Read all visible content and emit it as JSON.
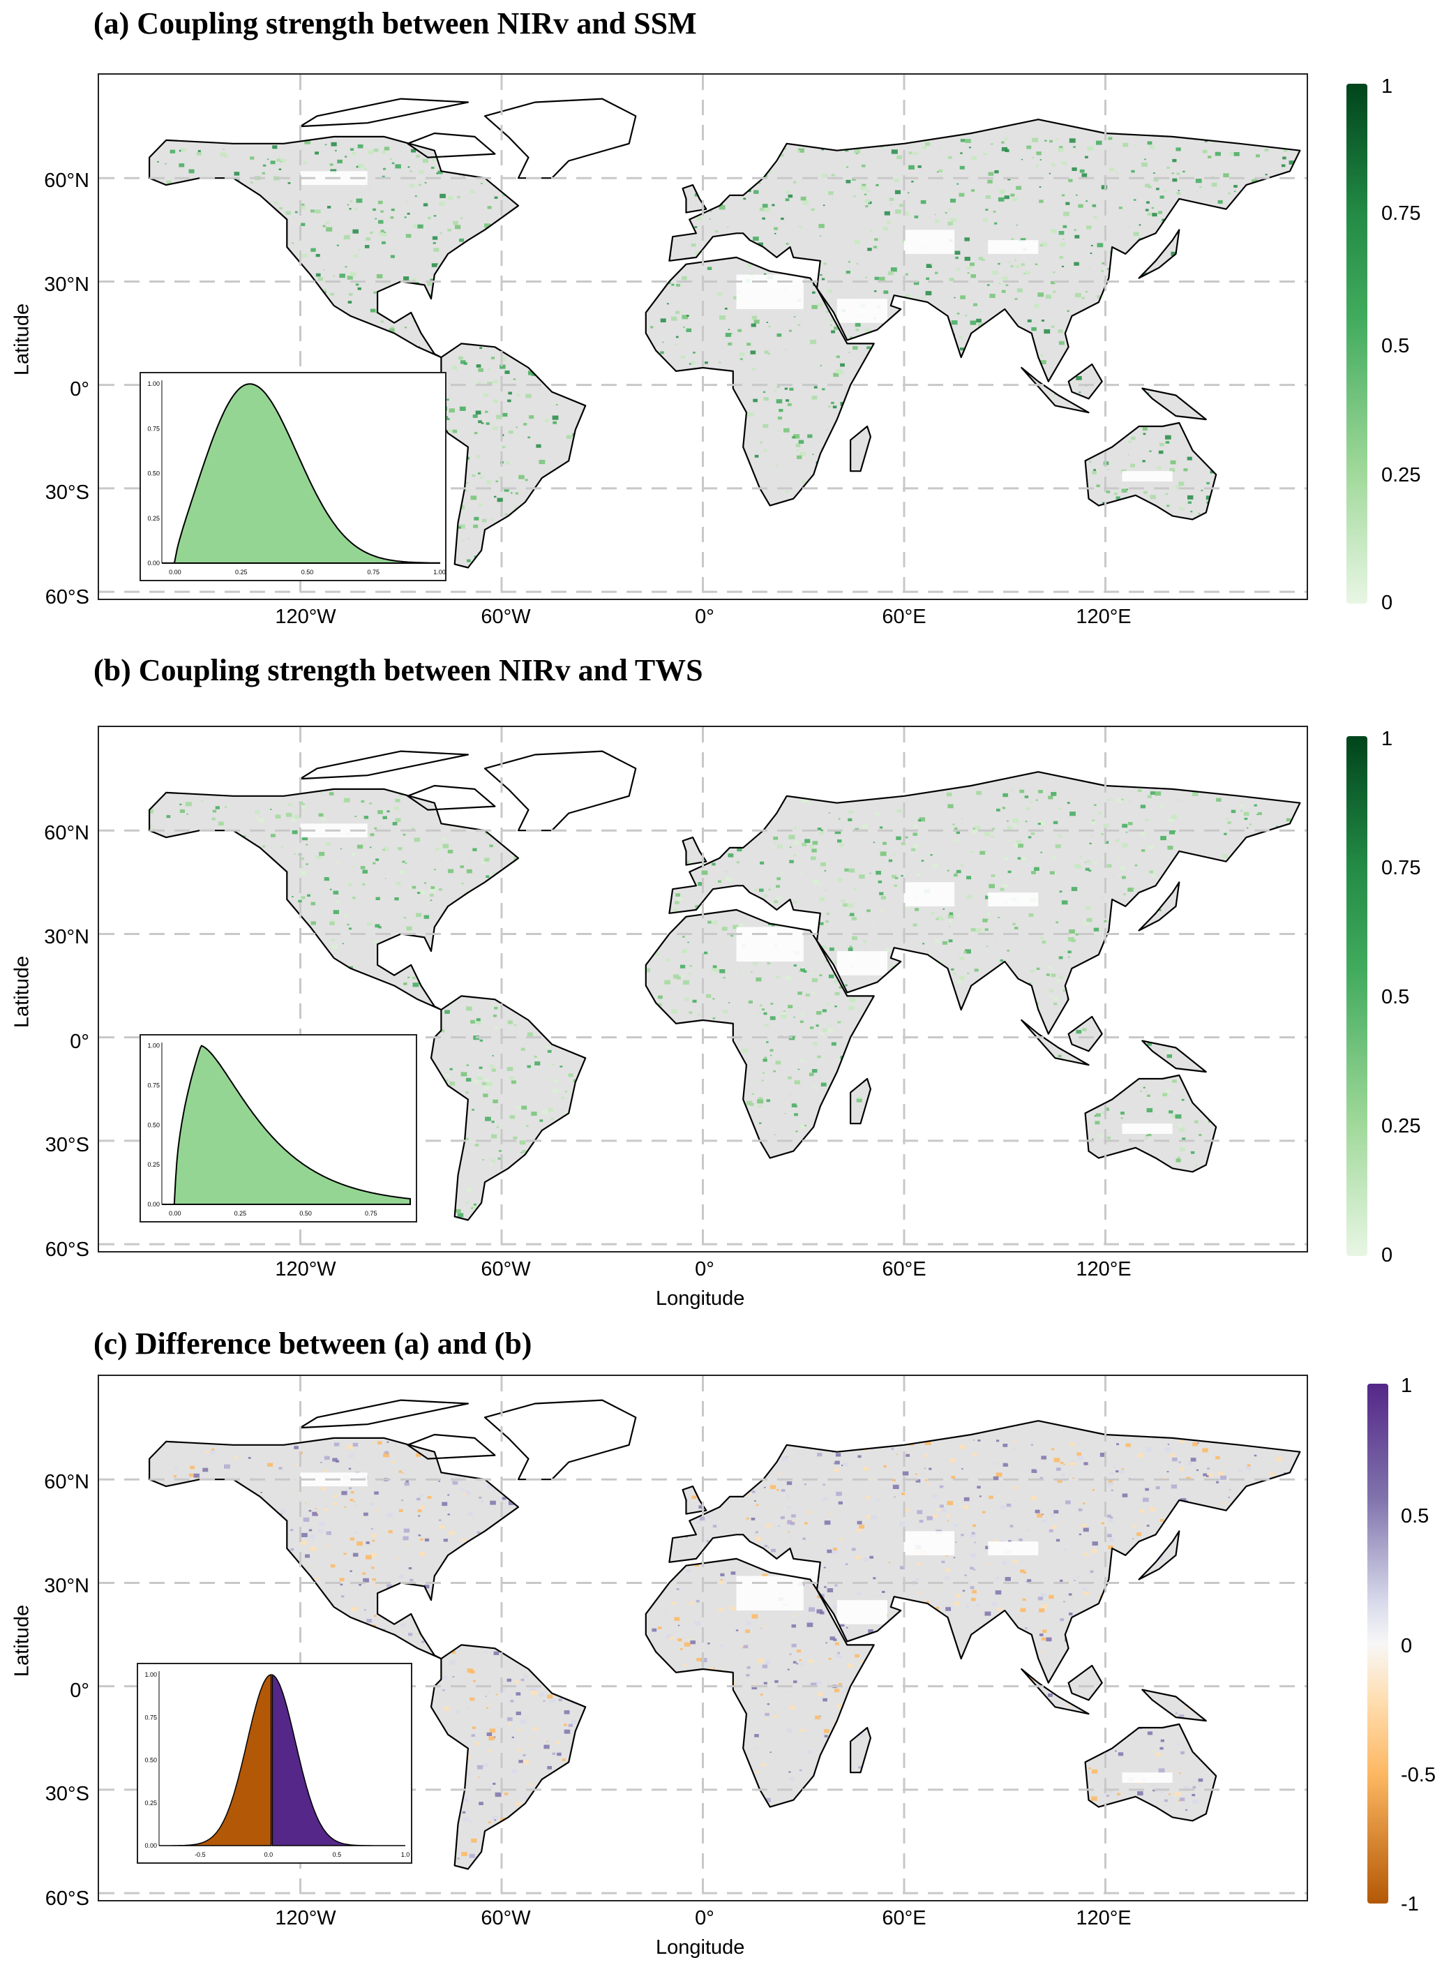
{
  "panels": [
    {
      "id": "a",
      "title": "(a) Coupling strength between NIRv and SSM",
      "ylabel": "Latitude",
      "xlabel": "",
      "lat_ticks": [
        "60°N",
        "30°N",
        "0°",
        "30°S",
        "60°S"
      ],
      "lon_ticks": [
        "120°W",
        "60°W",
        "0°",
        "60°E",
        "120°E"
      ],
      "colorbar": {
        "ticks": [
          "1",
          "0.75",
          "0.5",
          "0.25",
          "0"
        ],
        "low_color": "#e6f4e3",
        "high_color": "#00441b"
      },
      "inset": {
        "x_ticks": [
          "0.00",
          "0.25",
          "0.50",
          "0.75",
          "1.00"
        ],
        "y_ticks": [
          "1.00",
          "0.75",
          "0.50",
          "0.25",
          "0.00"
        ],
        "fill_color": "#95d593"
      }
    },
    {
      "id": "b",
      "title": "(b) Coupling strength between NIRv and TWS",
      "ylabel": "Latitude",
      "xlabel": "Longitude",
      "lat_ticks": [
        "60°N",
        "30°N",
        "0°",
        "30°S",
        "60°S"
      ],
      "lon_ticks": [
        "120°W",
        "60°W",
        "0°",
        "60°E",
        "120°E"
      ],
      "colorbar": {
        "ticks": [
          "1",
          "0.75",
          "0.5",
          "0.25",
          "0"
        ],
        "low_color": "#e6f4e3",
        "high_color": "#00441b"
      },
      "inset": {
        "x_ticks": [
          "0.00",
          "0.25",
          "0.50",
          "0.75"
        ],
        "y_ticks": [
          "1.00",
          "0.75",
          "0.50",
          "0.25",
          "0.00"
        ],
        "fill_color": "#95d593"
      }
    },
    {
      "id": "c",
      "title": "(c) Difference between (a) and (b)",
      "ylabel": "Latitude",
      "xlabel": "Longitude",
      "lat_ticks": [
        "60°N",
        "30°N",
        "0°",
        "30°S",
        "60°S"
      ],
      "lon_ticks": [
        "120°W",
        "60°W",
        "0°",
        "60°E",
        "120°E"
      ],
      "colorbar": {
        "ticks": [
          "1",
          "0.5",
          "0",
          "-0.5",
          "-1"
        ],
        "low_color": "#b35806",
        "high_color": "#542788"
      },
      "inset": {
        "x_ticks": [
          "-0.5",
          "0.0",
          "0.5",
          "1.0"
        ],
        "y_ticks": [
          "1.00",
          "0.75",
          "0.50",
          "0.25",
          "0.00"
        ],
        "fill_color_negative": "#b35806",
        "fill_color_positive": "#542788"
      }
    }
  ]
}
